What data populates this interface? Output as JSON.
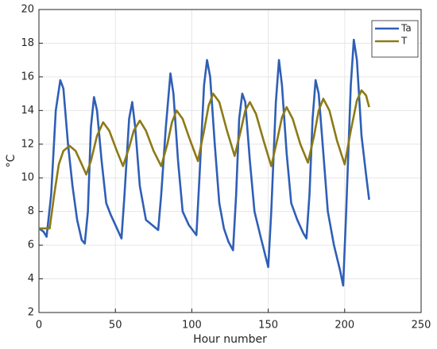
{
  "chart_data": {
    "type": "line",
    "xlabel": "Hour number",
    "ylabel": "°C",
    "xlim": [
      0,
      250
    ],
    "xticks": [
      0,
      50,
      100,
      150,
      200,
      250
    ],
    "ylim": [
      2,
      20
    ],
    "yticks": [
      2,
      4,
      6,
      8,
      10,
      12,
      14,
      16,
      18,
      20
    ],
    "grid": true,
    "legend": "northeast",
    "series": [
      {
        "name": "Ta",
        "color": "#2f5fb6",
        "x": [
          0,
          3,
          5,
          8,
          11,
          14,
          16,
          19,
          22,
          25,
          28,
          30,
          32,
          34,
          36,
          38,
          41,
          44,
          47,
          50,
          54,
          56,
          59,
          61,
          63,
          66,
          70,
          74,
          78,
          80,
          83,
          86,
          88,
          91,
          94,
          98,
          103,
          105,
          108,
          110,
          112,
          115,
          118,
          121,
          124,
          127,
          129,
          131,
          133,
          135,
          138,
          141,
          145,
          150,
          152,
          155,
          157,
          159,
          162,
          165,
          169,
          173,
          175,
          177,
          179,
          181,
          183,
          186,
          189,
          193,
          197,
          199,
          201,
          204,
          206,
          208,
          211,
          214,
          216
        ],
        "values": [
          7,
          6.8,
          6.5,
          9,
          14,
          15.8,
          15.3,
          12,
          9.5,
          7.5,
          6.3,
          6.1,
          8,
          13,
          14.8,
          14,
          11,
          8.5,
          7.8,
          7.2,
          6.4,
          9,
          13.5,
          14.5,
          13,
          9.5,
          7.5,
          7.2,
          6.9,
          9,
          13,
          16.2,
          15,
          11,
          8,
          7.2,
          6.6,
          10,
          15.5,
          17,
          16,
          12,
          8.5,
          7,
          6.2,
          5.7,
          9,
          13.5,
          15,
          14.5,
          11,
          8,
          6.5,
          4.7,
          8,
          14.5,
          17,
          15.5,
          11.5,
          8.5,
          7.5,
          6.7,
          6.4,
          9,
          13.5,
          15.8,
          15,
          11.5,
          8,
          6,
          4.5,
          3.6,
          8,
          15.5,
          18.2,
          17,
          12.5,
          10.2,
          8.7
        ]
      },
      {
        "name": "T",
        "color": "#8c7a17",
        "x": [
          0,
          4,
          7,
          10,
          13,
          16,
          20,
          24,
          28,
          31,
          34,
          38,
          42,
          46,
          51,
          55,
          59,
          62,
          66,
          70,
          75,
          80,
          84,
          87,
          90,
          94,
          99,
          104,
          108,
          111,
          114,
          118,
          123,
          128,
          132,
          135,
          138,
          142,
          147,
          152,
          156,
          159,
          162,
          166,
          171,
          176,
          180,
          183,
          186,
          190,
          195,
          200,
          204,
          208,
          211,
          214,
          216
        ],
        "values": [
          7,
          7,
          7,
          9,
          10.8,
          11.6,
          11.9,
          11.6,
          10.8,
          10.2,
          11,
          12.5,
          13.3,
          12.8,
          11.6,
          10.7,
          11.8,
          12.8,
          13.4,
          12.8,
          11.6,
          10.7,
          12,
          13.3,
          14,
          13.5,
          12.2,
          11,
          12.8,
          14.3,
          15,
          14.5,
          12.8,
          11.3,
          12.8,
          14,
          14.5,
          13.8,
          12.2,
          10.7,
          12.3,
          13.6,
          14.2,
          13.5,
          12,
          10.9,
          12.5,
          14,
          14.7,
          14,
          12.2,
          10.8,
          12.8,
          14.6,
          15.2,
          14.9,
          14.2
        ]
      }
    ]
  }
}
